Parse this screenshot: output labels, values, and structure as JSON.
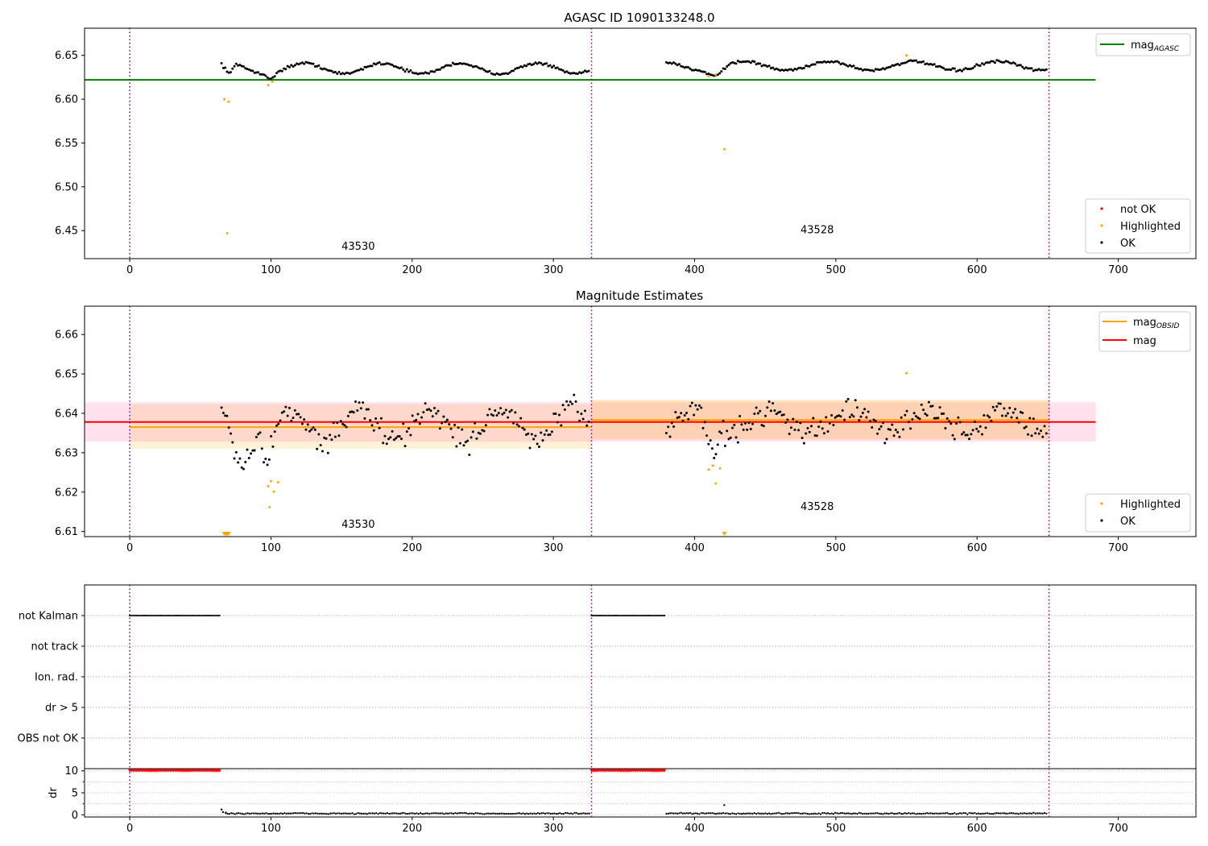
{
  "chart_data": [
    {
      "type": "scatter",
      "title": "AGASC ID 1090133248.0",
      "xlabel": "",
      "ylabel": "",
      "xlim": [
        -32,
        755
      ],
      "ylim": [
        6.418,
        6.681
      ],
      "xticks": [
        "0",
        "100",
        "200",
        "300",
        "400",
        "500",
        "600",
        "700"
      ],
      "yticks": [
        "6.45",
        "6.50",
        "6.55",
        "6.60",
        "6.65"
      ],
      "obsid_boundaries": [
        0,
        327,
        651
      ],
      "obsid_labels": [
        {
          "x": 150,
          "y": 6.428,
          "text": "43530"
        },
        {
          "x": 475,
          "y": 6.447,
          "text": "43528"
        }
      ],
      "reference_lines": [
        {
          "name": "mag_AGASC",
          "y": 6.622,
          "x": [
            -32,
            684
          ],
          "color": "#008000"
        }
      ],
      "series": [
        {
          "name": "OK",
          "color": "#000000",
          "segments": [
            {
              "x0": 65,
              "x1": 326,
              "step": 1.3,
              "base": 6.635,
              "amp": 0.006,
              "period": 55,
              "noise": 0.003,
              "dips": [
                [
                  65,
                  75,
                  -0.012
                ],
                [
                  95,
                  105,
                  -0.008
                ]
              ]
            },
            {
              "x0": 380,
              "x1": 650,
              "step": 1.3,
              "base": 6.638,
              "amp": 0.005,
              "period": 60,
              "noise": 0.003,
              "dips": [
                [
                  405,
                  425,
                  -0.009
                ]
              ]
            }
          ]
        },
        {
          "name": "Highlighted",
          "color": "#ffa500",
          "points": [
            [
              67,
              6.6
            ],
            [
              70,
              6.597
            ],
            [
              69,
              6.447
            ],
            [
              98,
              6.616
            ],
            [
              101,
              6.62
            ],
            [
              410,
              6.626
            ],
            [
              415,
              6.628
            ],
            [
              421,
              6.543
            ],
            [
              550,
              6.65
            ]
          ]
        },
        {
          "name": "not OK",
          "color": "#ff0000",
          "points": []
        }
      ],
      "legend": {
        "upper_right": [
          "mag_AGASC"
        ],
        "lower_right": [
          "not OK",
          "Highlighted",
          "OK"
        ]
      }
    },
    {
      "type": "scatter",
      "title": "Magnitude Estimates",
      "xlabel": "",
      "ylabel": "",
      "xlim": [
        -32,
        755
      ],
      "ylim": [
        6.6087,
        6.6672
      ],
      "xticks": [
        "0",
        "100",
        "200",
        "300",
        "400",
        "500",
        "600",
        "700"
      ],
      "yticks": [
        "6.61",
        "6.62",
        "6.63",
        "6.64",
        "6.65",
        "6.66"
      ],
      "obsid_boundaries": [
        0,
        327,
        651
      ],
      "obsid_labels": [
        {
          "x": 150,
          "y": 6.6109,
          "text": "43530"
        },
        {
          "x": 475,
          "y": 6.6154,
          "text": "43528"
        }
      ],
      "bands": [
        {
          "x": [
            -32,
            684
          ],
          "y": [
            6.6328,
            6.6428
          ],
          "color": "#ff69b4",
          "opacity": 0.2
        },
        {
          "x": [
            0,
            327
          ],
          "y": [
            6.631,
            6.6423
          ],
          "color": "#ffa500",
          "opacity": 0.15
        },
        {
          "x": [
            327,
            651
          ],
          "y": [
            6.6334,
            6.6434
          ],
          "color": "#ffa500",
          "opacity": 0.25
        }
      ],
      "reference_lines": [
        {
          "name": "mag_OBSID",
          "color": "#ffa500",
          "segments": [
            {
              "x": [
                0,
                327
              ],
              "y": 6.6365
            },
            {
              "x": [
                327,
                651
              ],
              "y": 6.6383
            }
          ]
        },
        {
          "name": "mag",
          "color": "#ff0000",
          "segments": [
            {
              "x": [
                -32,
                684
              ],
              "y": 6.6378
            }
          ]
        }
      ],
      "series": [
        {
          "name": "OK",
          "color": "#000000",
          "segments": [
            {
              "x0": 65,
              "x1": 326,
              "step": 1.3,
              "base": 6.637,
              "amp": 0.004,
              "period": 50,
              "noise": 0.006,
              "dips": [
                [
                  67,
                  90,
                  -0.009
                ],
                [
                  92,
                  105,
                  -0.009
                ]
              ]
            },
            {
              "x0": 380,
              "x1": 650,
              "step": 1.3,
              "base": 6.638,
              "amp": 0.003,
              "period": 55,
              "noise": 0.006,
              "dips": [
                [
                  405,
                  420,
                  -0.009
                ]
              ]
            }
          ]
        },
        {
          "name": "Highlighted",
          "color": "#ffa500",
          "points": [
            [
              98,
              6.6215
            ],
            [
              100,
              6.6228
            ],
            [
              102,
              6.6201
            ],
            [
              105,
              6.6225
            ],
            [
              99,
              6.6162
            ],
            [
              410,
              6.6257
            ],
            [
              413,
              6.6267
            ],
            [
              415,
              6.6222
            ],
            [
              418,
              6.626
            ],
            [
              550,
              6.6502
            ]
          ]
        },
        {
          "name": "Highlighted (below range)",
          "color": "#ffa500",
          "marker": "triangle-down",
          "points": [
            [
              67,
              6.6093
            ],
            [
              68,
              6.6093
            ],
            [
              69,
              6.6093
            ],
            [
              70,
              6.6093
            ],
            [
              421,
              6.6093
            ]
          ]
        }
      ],
      "legend": {
        "upper_right": [
          "mag_OBSID",
          "mag"
        ],
        "lower_right": [
          "Highlighted",
          "OK"
        ]
      }
    },
    {
      "type": "scatter",
      "title": "",
      "xlim": [
        -32,
        755
      ],
      "xticks": [
        "0",
        "100",
        "200",
        "300",
        "400",
        "500",
        "600",
        "700"
      ],
      "obsid_boundaries": [
        0,
        327,
        651
      ],
      "flags_panel": {
        "categories": [
          "not Kalman",
          "not track",
          "Ion. rad.",
          "dr > 5",
          "OBS not OK"
        ],
        "flagged_intervals": [
          {
            "category": "not Kalman",
            "x": [
              0,
              64
            ]
          },
          {
            "category": "not Kalman",
            "x": [
              327,
              379
            ]
          }
        ]
      },
      "dr_panel": {
        "ylabel": "dr",
        "ylim": [
          -0.5,
          10.5
        ],
        "yticks": [
          "0",
          "5",
          "10"
        ],
        "saturated": [
          {
            "x": [
              0,
              64
            ],
            "y": 10
          },
          {
            "x": [
              327,
              379
            ],
            "y": 10
          }
        ],
        "points": [
          [
            65,
            1.2
          ],
          [
            66,
            0.6
          ],
          [
            68,
            0.5
          ],
          [
            421,
            2.2
          ]
        ],
        "baseline": {
          "y": 0.3,
          "segments": [
            [
              68,
              326
            ],
            [
              380,
              650
            ]
          ]
        }
      }
    }
  ]
}
